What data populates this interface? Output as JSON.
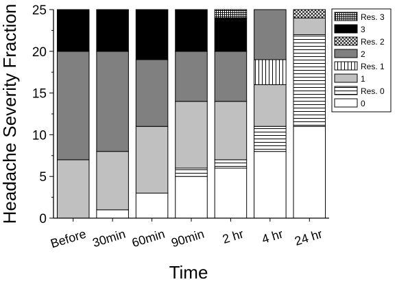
{
  "chart_data": {
    "type": "bar",
    "stacked": true,
    "title": "",
    "xlabel": "Time",
    "ylabel": "Headache Severity Fraction",
    "ylim": [
      0,
      25
    ],
    "yticks": [
      0,
      5,
      10,
      15,
      20,
      25
    ],
    "grid": false,
    "legend_position": "right",
    "categories": [
      "Before",
      "30min",
      "60min",
      "90min",
      "2 hr",
      "4 hr",
      "24 hr"
    ],
    "series": [
      {
        "name": "0",
        "pattern": "white",
        "values": [
          0,
          1,
          3,
          5,
          6,
          8,
          11
        ]
      },
      {
        "name": "Res. 0",
        "pattern": "hlines",
        "values": [
          0,
          0,
          0,
          1,
          1,
          3,
          11
        ]
      },
      {
        "name": "1",
        "pattern": "lightgray",
        "values": [
          7,
          7,
          8,
          8,
          7,
          5,
          2
        ]
      },
      {
        "name": "Res. 1",
        "pattern": "vlines",
        "values": [
          0,
          0,
          0,
          0,
          0,
          3,
          0
        ]
      },
      {
        "name": "2",
        "pattern": "darkgray",
        "values": [
          13,
          12,
          8,
          6,
          6,
          6,
          0
        ]
      },
      {
        "name": "Res. 2",
        "pattern": "crosshatch",
        "values": [
          0,
          0,
          0,
          0,
          0,
          0,
          1
        ]
      },
      {
        "name": "3",
        "pattern": "black",
        "values": [
          5,
          5,
          6,
          5,
          4,
          0,
          0
        ]
      },
      {
        "name": "Res. 3",
        "pattern": "grid",
        "values": [
          0,
          0,
          0,
          0,
          1,
          0,
          0
        ]
      }
    ],
    "legend_order": [
      "Res. 3",
      "3",
      "Res. 2",
      "2",
      "Res. 1",
      "1",
      "Res. 0",
      "0"
    ]
  },
  "colors": {
    "axis": "#000000",
    "bar_outline": "#000000",
    "lightgray": "#c0c0c0",
    "darkgray": "#808080",
    "black": "#000000",
    "white": "#ffffff"
  }
}
